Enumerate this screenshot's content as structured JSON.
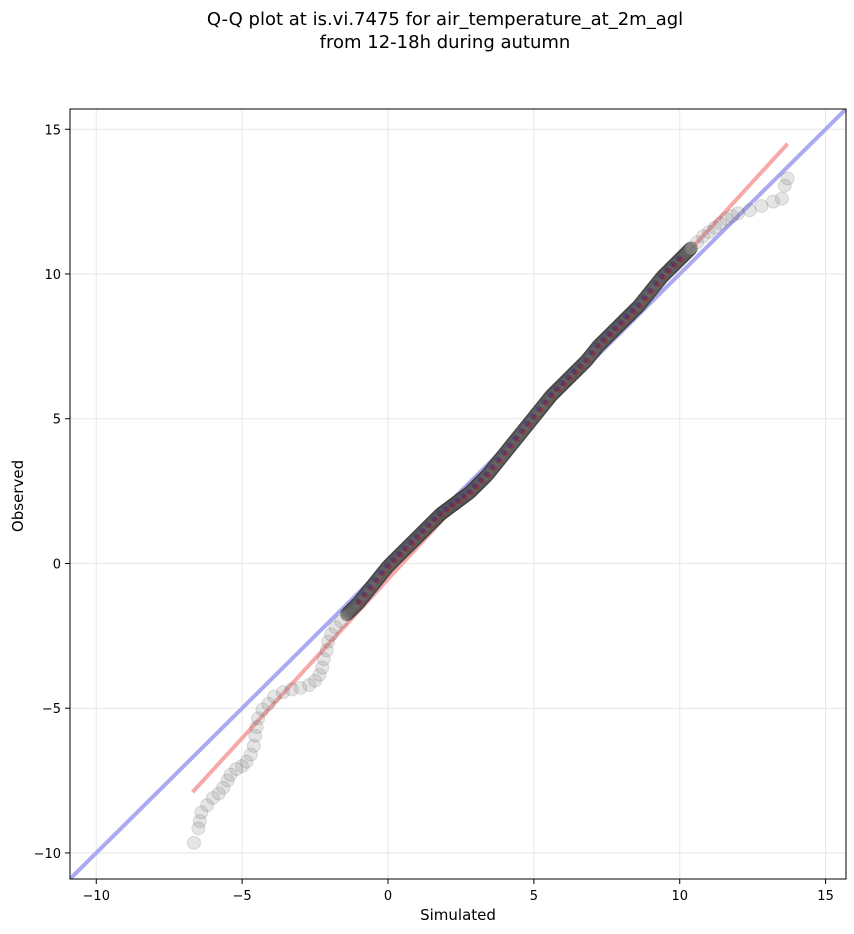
{
  "chart_data": {
    "type": "scatter",
    "title_line1": "Q-Q plot at is.vi.7475 for air_temperature_at_2m_agl",
    "title_line2": "from 12-18h during autumn",
    "xlabel": "Simulated",
    "ylabel": "Observed",
    "xlim": [
      -10.9,
      15.7
    ],
    "ylim": [
      -10.9,
      15.7
    ],
    "xticks": [
      -10,
      -5,
      0,
      5,
      10,
      15
    ],
    "yticks": [
      -10,
      -5,
      0,
      5,
      10,
      15
    ],
    "xtick_labels": [
      "−10",
      "−5",
      "0",
      "5",
      "10",
      "15"
    ],
    "ytick_labels": [
      "−10",
      "−5",
      "0",
      "5",
      "10",
      "15"
    ],
    "grid": true,
    "identity_line": {
      "color": "#aaaaf2",
      "from": [
        -10.9,
        -10.9
      ],
      "to": [
        15.7,
        15.7
      ]
    },
    "fit_line": {
      "color": "#f7a8a8",
      "from": [
        -6.7,
        -7.9
      ],
      "to": [
        13.7,
        14.5
      ]
    },
    "colors": {
      "points": "#7f7f7f",
      "points_edge": "#333333",
      "dense_core": "#111111",
      "dense_red": "#cc0000",
      "dense_blue": "#1a1a99"
    },
    "series": [
      {
        "points": [
          [
            -6.65,
            -9.65
          ],
          [
            -6.5,
            -9.15
          ],
          [
            -6.45,
            -8.9
          ],
          [
            -6.4,
            -8.6
          ],
          [
            -6.2,
            -8.35
          ],
          [
            -6.0,
            -8.1
          ],
          [
            -5.8,
            -7.95
          ],
          [
            -5.65,
            -7.75
          ],
          [
            -5.5,
            -7.5
          ],
          [
            -5.4,
            -7.3
          ],
          [
            -5.2,
            -7.1
          ],
          [
            -5.0,
            -7.0
          ],
          [
            -4.85,
            -6.85
          ],
          [
            -4.7,
            -6.6
          ],
          [
            -4.6,
            -6.3
          ],
          [
            -4.55,
            -5.95
          ],
          [
            -4.5,
            -5.65
          ],
          [
            -4.45,
            -5.35
          ],
          [
            -4.3,
            -5.05
          ],
          [
            -4.1,
            -4.85
          ],
          [
            -3.9,
            -4.6
          ],
          [
            -3.6,
            -4.45
          ],
          [
            -3.3,
            -4.35
          ],
          [
            -3.0,
            -4.3
          ],
          [
            -2.7,
            -4.2
          ],
          [
            -2.5,
            -4.05
          ],
          [
            -2.35,
            -3.85
          ],
          [
            -2.25,
            -3.6
          ],
          [
            -2.2,
            -3.3
          ],
          [
            -2.1,
            -3.0
          ],
          [
            -2.05,
            -2.7
          ],
          [
            -1.95,
            -2.45
          ],
          [
            -1.8,
            -2.2
          ],
          [
            -1.6,
            -2.0
          ],
          [
            -1.4,
            -1.75
          ],
          [
            -1.2,
            -1.55
          ],
          [
            -1.0,
            -1.35
          ],
          [
            -0.8,
            -1.1
          ],
          [
            -0.6,
            -0.85
          ],
          [
            -0.4,
            -0.6
          ],
          [
            -0.2,
            -0.35
          ],
          [
            0.0,
            -0.1
          ],
          [
            0.2,
            0.1
          ],
          [
            0.4,
            0.3
          ],
          [
            0.6,
            0.5
          ],
          [
            0.8,
            0.7
          ],
          [
            1.0,
            0.9
          ],
          [
            1.2,
            1.1
          ],
          [
            1.4,
            1.3
          ],
          [
            1.6,
            1.5
          ],
          [
            1.8,
            1.7
          ],
          [
            2.0,
            1.85
          ],
          [
            2.2,
            2.0
          ],
          [
            2.4,
            2.15
          ],
          [
            2.6,
            2.3
          ],
          [
            2.8,
            2.45
          ],
          [
            3.0,
            2.65
          ],
          [
            3.2,
            2.85
          ],
          [
            3.4,
            3.05
          ],
          [
            3.6,
            3.3
          ],
          [
            3.8,
            3.55
          ],
          [
            4.0,
            3.8
          ],
          [
            4.2,
            4.05
          ],
          [
            4.4,
            4.3
          ],
          [
            4.6,
            4.55
          ],
          [
            4.8,
            4.8
          ],
          [
            5.0,
            5.05
          ],
          [
            5.2,
            5.3
          ],
          [
            5.4,
            5.55
          ],
          [
            5.6,
            5.8
          ],
          [
            5.8,
            6.0
          ],
          [
            6.0,
            6.2
          ],
          [
            6.2,
            6.4
          ],
          [
            6.4,
            6.6
          ],
          [
            6.6,
            6.8
          ],
          [
            6.8,
            7.0
          ],
          [
            7.0,
            7.25
          ],
          [
            7.2,
            7.5
          ],
          [
            7.4,
            7.7
          ],
          [
            7.6,
            7.9
          ],
          [
            7.8,
            8.1
          ],
          [
            8.0,
            8.3
          ],
          [
            8.2,
            8.5
          ],
          [
            8.4,
            8.7
          ],
          [
            8.6,
            8.9
          ],
          [
            8.8,
            9.15
          ],
          [
            9.0,
            9.4
          ],
          [
            9.2,
            9.65
          ],
          [
            9.4,
            9.9
          ],
          [
            9.6,
            10.1
          ],
          [
            9.8,
            10.3
          ],
          [
            10.0,
            10.5
          ],
          [
            10.2,
            10.7
          ],
          [
            10.4,
            10.9
          ],
          [
            10.6,
            11.1
          ],
          [
            10.8,
            11.3
          ],
          [
            11.0,
            11.45
          ],
          [
            11.2,
            11.6
          ],
          [
            11.4,
            11.75
          ],
          [
            11.6,
            11.9
          ],
          [
            11.8,
            12.0
          ],
          [
            12.0,
            12.1
          ],
          [
            12.4,
            12.2
          ],
          [
            12.8,
            12.35
          ],
          [
            13.2,
            12.5
          ],
          [
            13.5,
            12.6
          ],
          [
            13.6,
            13.05
          ],
          [
            13.7,
            13.3
          ]
        ]
      }
    ]
  }
}
